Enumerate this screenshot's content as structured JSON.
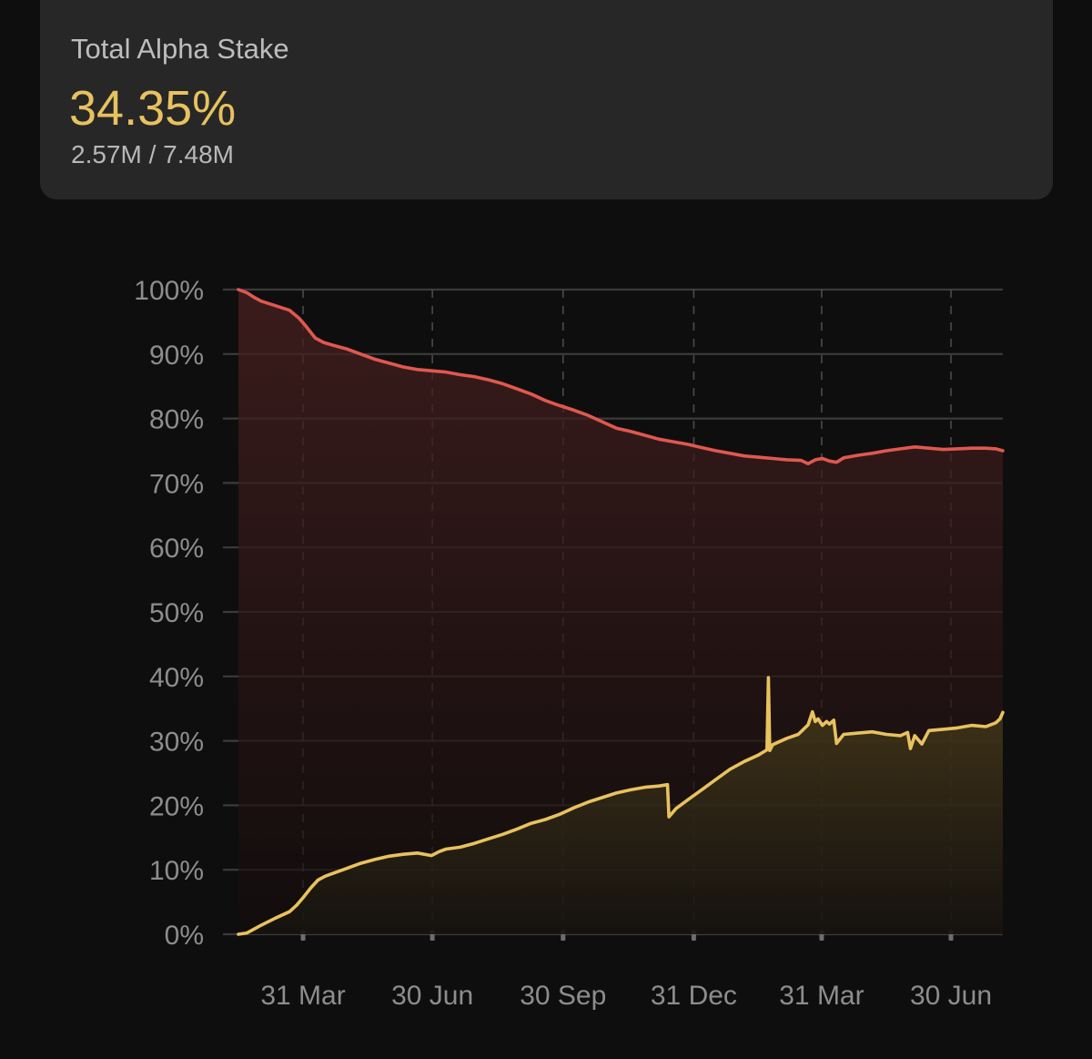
{
  "header": {
    "title": "Total Alpha Stake",
    "value": "34.35%",
    "sub": "2.57M / 7.48M"
  },
  "colors": {
    "background": "#0e0e0e",
    "card": "#272727",
    "accent": "#e8c25f",
    "red_line": "#e0584f",
    "yellow_line": "#e8c25f"
  },
  "chart_data": {
    "type": "area",
    "title": "",
    "xlabel": "",
    "ylabel": "",
    "ylim": [
      0,
      100
    ],
    "y_ticks": [
      "100%",
      "90%",
      "80%",
      "70%",
      "60%",
      "50%",
      "40%",
      "30%",
      "20%",
      "10%",
      "0%"
    ],
    "y_tick_values": [
      100,
      90,
      80,
      70,
      60,
      50,
      40,
      30,
      20,
      10,
      0
    ],
    "x_ticks": [
      "31 Mar",
      "30 Jun",
      "30 Sep",
      "31 Dec",
      "31 Mar",
      "30 Jun"
    ],
    "x_tick_positions": [
      -0.5,
      90.5,
      182.5,
      274.5,
      364.5,
      455.5
    ],
    "x_range": [
      -46,
      492
    ],
    "grid": true,
    "legend": "none",
    "series": [
      {
        "color": "#e0584f",
        "x": [
          -46,
          -40,
          -35,
          -30,
          -20,
          -10,
          -3,
          2,
          8,
          14,
          20,
          30,
          40,
          50,
          60,
          70,
          80,
          90,
          100,
          110,
          120,
          130,
          140,
          150,
          160,
          170,
          180,
          190,
          200,
          210,
          220,
          230,
          240,
          250,
          260,
          270,
          280,
          290,
          300,
          310,
          320,
          330,
          340,
          350,
          355,
          360,
          365,
          370,
          375,
          380,
          390,
          400,
          410,
          420,
          430,
          440,
          450,
          460,
          470,
          480,
          487,
          492
        ],
        "values": [
          100,
          99.5,
          98.8,
          98.2,
          97.5,
          96.8,
          95.5,
          94.2,
          92.5,
          91.8,
          91.4,
          90.8,
          90.0,
          89.2,
          88.6,
          88.0,
          87.6,
          87.4,
          87.2,
          86.8,
          86.5,
          86.0,
          85.4,
          84.6,
          83.8,
          82.8,
          82.0,
          81.3,
          80.5,
          79.5,
          78.5,
          78.0,
          77.4,
          76.8,
          76.4,
          76.0,
          75.5,
          75.0,
          74.6,
          74.2,
          74.0,
          73.8,
          73.6,
          73.5,
          73.0,
          73.6,
          73.8,
          73.4,
          73.2,
          73.9,
          74.3,
          74.6,
          75.0,
          75.3,
          75.6,
          75.4,
          75.2,
          75.3,
          75.4,
          75.4,
          75.3,
          75.0
        ]
      },
      {
        "color": "#e8c25f",
        "x": [
          -46,
          -40,
          -35,
          -30,
          -20,
          -10,
          -5,
          0,
          5,
          10,
          15,
          20,
          30,
          40,
          50,
          60,
          70,
          80,
          90,
          95,
          100,
          110,
          120,
          130,
          140,
          150,
          160,
          170,
          180,
          190,
          200,
          210,
          220,
          230,
          240,
          250,
          256,
          257,
          262,
          270,
          280,
          290,
          300,
          310,
          320,
          326,
          327,
          328,
          330,
          340,
          348,
          355,
          358,
          360,
          362,
          365,
          368,
          370,
          373,
          375,
          380,
          390,
          400,
          410,
          420,
          425,
          427,
          430,
          435,
          440,
          450,
          460,
          470,
          480,
          487,
          490,
          492
        ],
        "values": [
          0,
          0.2,
          0.8,
          1.4,
          2.5,
          3.5,
          4.5,
          5.8,
          7.2,
          8.4,
          9.0,
          9.4,
          10.2,
          11.0,
          11.6,
          12.1,
          12.4,
          12.6,
          12.2,
          12.8,
          13.2,
          13.5,
          14.1,
          14.8,
          15.5,
          16.3,
          17.2,
          17.8,
          18.6,
          19.6,
          20.5,
          21.2,
          21.9,
          22.4,
          22.8,
          23.0,
          23.2,
          18.2,
          19.5,
          20.8,
          22.4,
          24.0,
          25.6,
          26.8,
          27.8,
          28.6,
          39.8,
          28.5,
          29.4,
          30.4,
          31.0,
          32.5,
          34.5,
          33.0,
          33.4,
          32.4,
          33.0,
          32.6,
          33.2,
          29.6,
          31.0,
          31.2,
          31.4,
          31.0,
          30.8,
          31.3,
          28.8,
          30.8,
          29.5,
          31.6,
          31.8,
          32.0,
          32.4,
          32.2,
          32.8,
          33.4,
          34.4
        ]
      }
    ]
  }
}
